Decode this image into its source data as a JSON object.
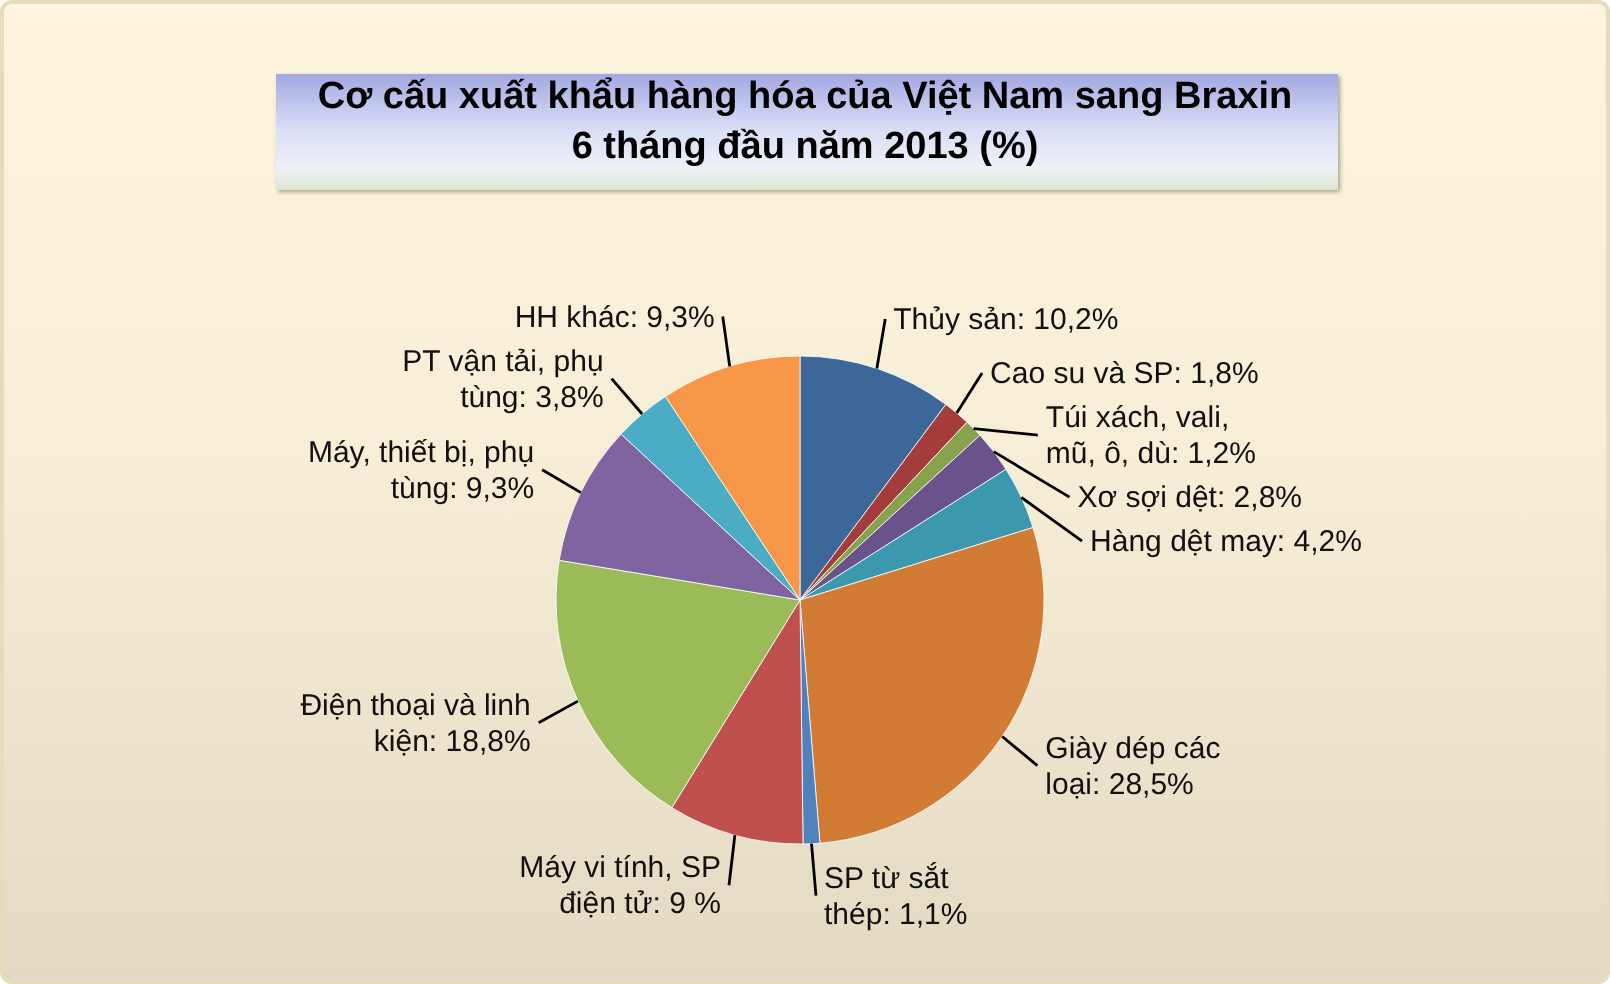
{
  "chart_data": {
    "type": "pie",
    "title": "Cơ cấu xuất khẩu hàng hóa của Việt Nam sang Braxin\n6 tháng đầu năm 2013 (%)",
    "categories": [
      "Thủy sản",
      "Cao su và SP",
      "Túi xách, vali, mũ, ô, dù",
      "Xơ sợi dệt",
      "Hàng dệt may",
      "Giày dép các loại",
      "SP từ sắt thép",
      "Máy vi tính, SP điện tử",
      "Điện thoại và linh kiện",
      "Máy, thiết bị, phụ tùng",
      "PT vận tải, phụ tùng",
      "HH khác"
    ],
    "values": [
      10.2,
      1.8,
      1.2,
      2.8,
      4.2,
      28.5,
      1.1,
      9,
      18.8,
      9.3,
      3.8,
      9.3
    ],
    "value_labels": [
      "10,2%",
      "1,8%",
      "1,2%",
      "2,8%",
      "4,2%",
      "28,5%",
      "1,1%",
      "9 %",
      "18,8%",
      "9,3%",
      "3,8%",
      "9,3%"
    ],
    "colors": [
      "#3c6798",
      "#a33c3a",
      "#86a34b",
      "#6a538c",
      "#3b98ae",
      "#d27b35",
      "#4f81bd",
      "#c0504d",
      "#9bbb59",
      "#8064a2",
      "#4bacc6",
      "#f79646"
    ]
  }
}
